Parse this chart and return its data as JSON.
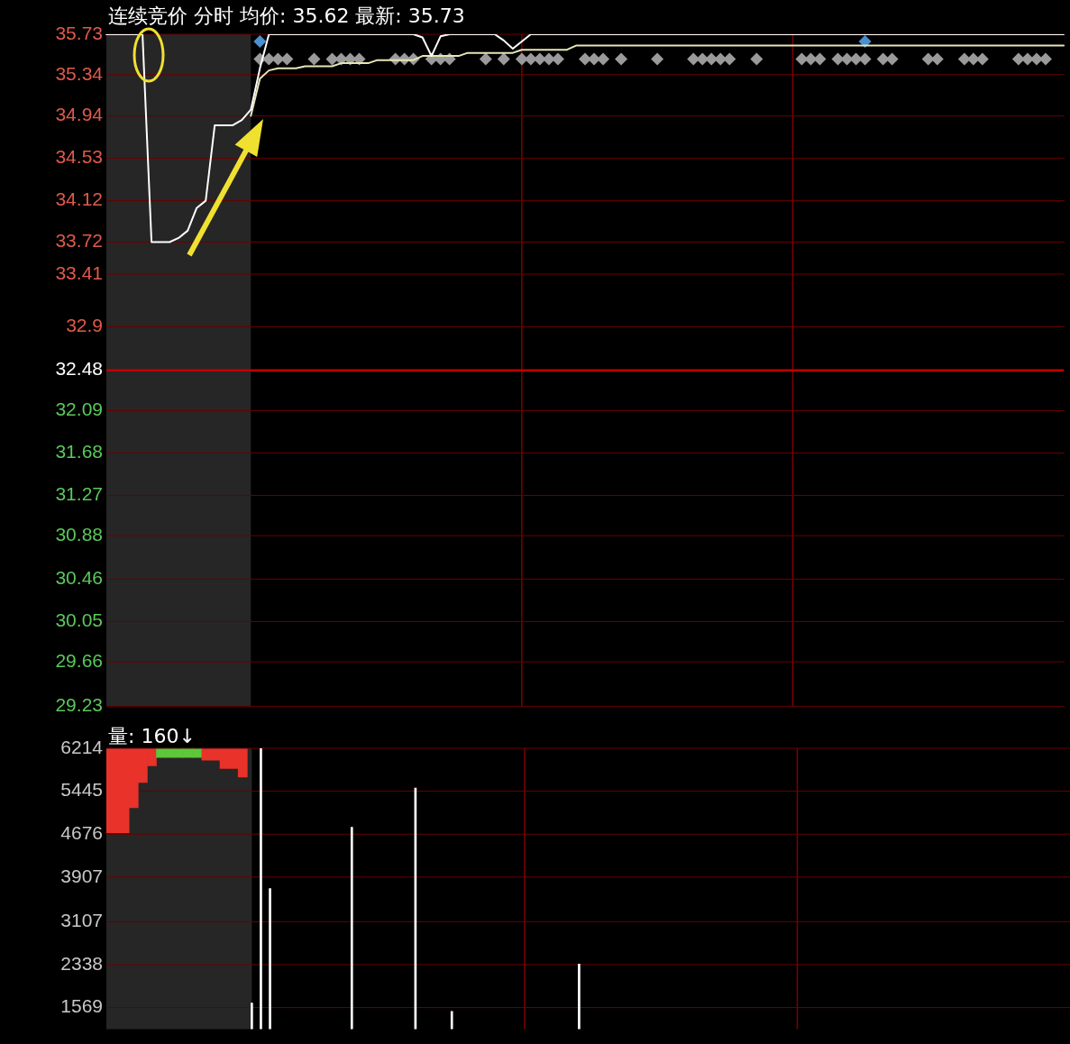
{
  "chart_data": [
    {
      "type": "line",
      "title": "连续竞价 分时 均价: 35.62 最新: 35.73",
      "categories": [
        null,
        null,
        null,
        null,
        null,
        null,
        null,
        null,
        null,
        null,
        null,
        null,
        null,
        null,
        null,
        null,
        null,
        null,
        null,
        null,
        null,
        null,
        null,
        null,
        null,
        null,
        null,
        null,
        null,
        null,
        null,
        null,
        null,
        null,
        null,
        null,
        null,
        null,
        null,
        null,
        null,
        null,
        null,
        null,
        null,
        null,
        null,
        null,
        null,
        null,
        null,
        null,
        null,
        null,
        null,
        null,
        null,
        null,
        null,
        null,
        null,
        null,
        null,
        null,
        null,
        null,
        null,
        null,
        null,
        null,
        null,
        null,
        null,
        null,
        null,
        null,
        null,
        null,
        null,
        null,
        null,
        null,
        null,
        null,
        null,
        null,
        null,
        null,
        null,
        null,
        null,
        null,
        null,
        null,
        null,
        null,
        null,
        null,
        null,
        null,
        null,
        null,
        null,
        null,
        null,
        null,
        null
      ],
      "ylim": [
        29.23,
        35.73
      ],
      "yticks": [
        35.73,
        35.34,
        34.94,
        34.53,
        34.12,
        33.72,
        33.41,
        32.9,
        32.48,
        32.09,
        31.68,
        31.27,
        30.88,
        30.46,
        30.05,
        29.66,
        29.23
      ],
      "grid": "y",
      "tick_labels": "y",
      "ref_lines": [
        {
          "axis": "y",
          "value": 32.48,
          "color": "#c00000"
        }
      ],
      "series": [
        {
          "color": "#ffffff",
          "values": [
            35.73,
            35.73,
            35.73,
            35.73,
            35.73,
            33.72,
            33.72,
            33.72,
            33.76,
            33.83,
            34.05,
            34.12,
            34.85,
            34.85,
            34.85,
            34.9,
            35.0,
            35.4,
            35.73,
            35.73,
            35.73,
            35.73,
            35.73,
            35.73,
            35.73,
            35.73,
            35.73,
            35.73,
            35.73,
            35.73,
            35.73,
            35.73,
            35.73,
            35.73,
            35.73,
            35.7,
            35.52,
            35.71,
            35.73,
            35.73,
            35.73,
            35.73,
            35.73,
            35.73,
            35.67,
            35.59,
            35.66,
            35.73,
            35.73,
            35.73,
            35.73,
            35.73,
            35.73,
            35.73,
            35.73,
            35.73,
            35.73,
            35.73,
            35.73,
            35.73,
            35.73,
            35.73,
            35.73,
            35.73,
            35.73,
            35.73,
            35.73,
            35.73,
            35.73,
            35.73,
            35.73,
            35.73,
            35.73,
            35.73,
            35.73,
            35.73,
            35.73,
            35.73,
            35.73,
            35.73,
            35.73,
            35.73,
            35.73,
            35.73,
            35.73,
            35.73,
            35.73,
            35.73,
            35.73,
            35.73,
            35.73,
            35.73,
            35.73,
            35.73,
            35.73,
            35.73,
            35.73,
            35.73,
            35.73,
            35.73,
            35.73,
            35.73,
            35.73,
            35.73,
            35.73,
            35.73,
            35.73
          ]
        },
        {
          "color": "#e6e6b8",
          "values": [
            null,
            null,
            null,
            null,
            null,
            null,
            null,
            null,
            null,
            null,
            null,
            null,
            null,
            null,
            null,
            null,
            34.94,
            35.3,
            35.38,
            35.4,
            35.4,
            35.4,
            35.42,
            35.42,
            35.42,
            35.42,
            35.45,
            35.45,
            35.45,
            35.45,
            35.48,
            35.48,
            35.48,
            35.48,
            35.48,
            35.52,
            35.52,
            35.52,
            35.52,
            35.52,
            35.55,
            35.55,
            35.55,
            35.55,
            35.55,
            35.55,
            35.58,
            35.58,
            35.58,
            35.58,
            35.58,
            35.58,
            35.62,
            35.62,
            35.62,
            35.62,
            35.62,
            35.62,
            35.62,
            35.62,
            35.62,
            35.62,
            35.62,
            35.62,
            35.62,
            35.62,
            35.62,
            35.62,
            35.62,
            35.62,
            35.62,
            35.62,
            35.62,
            35.62,
            35.62,
            35.62,
            35.62,
            35.62,
            35.62,
            35.62,
            35.62,
            35.62,
            35.62,
            35.62,
            35.62,
            35.62,
            35.62,
            35.62,
            35.62,
            35.62,
            35.62,
            35.62,
            35.62,
            35.62,
            35.62,
            35.62,
            35.62,
            35.62,
            35.62,
            35.62,
            35.62,
            35.62,
            35.62,
            35.62,
            35.62,
            35.62,
            35.62
          ]
        },
        {
          "type": "scatter",
          "marker": "diamond",
          "color": "#9a9a9a",
          "values": [
            null,
            null,
            null,
            null,
            null,
            null,
            null,
            null,
            null,
            null,
            null,
            null,
            null,
            null,
            null,
            null,
            null,
            35.49,
            35.49,
            35.49,
            35.49,
            null,
            null,
            35.49,
            null,
            35.49,
            35.49,
            35.49,
            35.49,
            null,
            null,
            null,
            35.49,
            35.49,
            35.49,
            null,
            35.49,
            35.49,
            35.49,
            null,
            null,
            null,
            35.49,
            null,
            35.49,
            null,
            35.49,
            35.49,
            35.49,
            35.49,
            35.49,
            null,
            null,
            35.49,
            35.49,
            35.49,
            null,
            35.49,
            null,
            null,
            null,
            35.49,
            null,
            null,
            null,
            35.49,
            35.49,
            35.49,
            35.49,
            35.49,
            null,
            null,
            35.49,
            null,
            null,
            null,
            null,
            35.49,
            35.49,
            35.49,
            null,
            35.49,
            35.49,
            35.49,
            35.49,
            null,
            35.49,
            35.49,
            null,
            null,
            null,
            35.49,
            35.49,
            null,
            null,
            35.49,
            35.49,
            35.49,
            null,
            null,
            null,
            35.49,
            35.49,
            35.49,
            35.49,
            null,
            null
          ]
        },
        {
          "type": "scatter",
          "marker": "diamond",
          "color": "#4a8fd0",
          "values": [
            null,
            null,
            null,
            null,
            null,
            null,
            null,
            null,
            null,
            null,
            null,
            null,
            null,
            null,
            null,
            null,
            null,
            35.66,
            null,
            null,
            null,
            null,
            null,
            null,
            null,
            null,
            null,
            null,
            null,
            null,
            null,
            null,
            null,
            null,
            null,
            null,
            null,
            null,
            null,
            null,
            null,
            null,
            null,
            null,
            null,
            null,
            null,
            null,
            null,
            null,
            null,
            null,
            null,
            null,
            null,
            null,
            null,
            null,
            null,
            null,
            null,
            null,
            null,
            null,
            null,
            null,
            null,
            null,
            null,
            null,
            null,
            null,
            null,
            null,
            null,
            null,
            null,
            null,
            null,
            null,
            null,
            null,
            null,
            null,
            35.66,
            null,
            null,
            null,
            null,
            null,
            null,
            null,
            null,
            null,
            null,
            null,
            null,
            null,
            null,
            null,
            null,
            null,
            null,
            null,
            null,
            null,
            null
          ]
        }
      ]
    },
    {
      "type": "bar",
      "title": "量: 160↓",
      "categories": [
        null,
        null,
        null,
        null,
        null,
        null,
        null,
        null,
        null,
        null,
        null,
        null,
        null,
        null,
        null,
        null,
        null,
        null,
        null,
        null,
        null,
        null,
        null,
        null,
        null,
        null,
        null,
        null,
        null,
        null,
        null,
        null,
        null,
        null,
        null,
        null,
        null,
        null,
        null,
        null,
        null,
        null,
        null,
        null,
        null,
        null,
        null,
        null,
        null,
        null,
        null,
        null,
        null,
        null,
        null,
        null,
        null,
        null,
        null,
        null,
        null,
        null,
        null,
        null,
        null,
        null,
        null,
        null,
        null,
        null,
        null,
        null,
        null,
        null,
        null,
        null,
        null,
        null,
        null,
        null,
        null,
        null,
        null,
        null,
        null,
        null,
        null,
        null,
        null,
        null,
        null,
        null,
        null,
        null,
        null,
        null,
        null,
        null,
        null,
        null,
        null,
        null,
        null,
        null,
        null,
        null,
        null
      ],
      "ylim": [
        1184,
        6214
      ],
      "yticks": [
        6214,
        5445,
        4676,
        3907,
        3107,
        2338,
        1569
      ],
      "grid": "y",
      "tick_labels": "y",
      "series": [
        {
          "color": "#ffffff",
          "values": [
            null,
            null,
            null,
            null,
            null,
            null,
            null,
            null,
            null,
            null,
            null,
            null,
            null,
            null,
            null,
            null,
            1650,
            6214,
            3700,
            null,
            null,
            null,
            null,
            null,
            null,
            null,
            null,
            4800,
            null,
            null,
            null,
            null,
            null,
            null,
            5500,
            null,
            null,
            null,
            1500,
            null,
            null,
            null,
            null,
            null,
            null,
            null,
            null,
            null,
            null,
            null,
            null,
            null,
            2350,
            null,
            null,
            null,
            null,
            null,
            null,
            null,
            null,
            null,
            null,
            null,
            null,
            null,
            null,
            null,
            null,
            null,
            null,
            null,
            null,
            null,
            null,
            null,
            null,
            null,
            null,
            null,
            null,
            null,
            null,
            null,
            null,
            null,
            null,
            null,
            null,
            null,
            null,
            null,
            null,
            null,
            null,
            null,
            null,
            null,
            null,
            null,
            null,
            null,
            null,
            null,
            null,
            null,
            null
          ]
        },
        {
          "color": "#e8322a",
          "colors": [
            "#e8322a",
            "#e8322a",
            "#e8322a",
            "#e8322a",
            "#e8322a",
            "#e8322a",
            "#5cc83a",
            "#5cc83a",
            "#5cc83a",
            "#5cc83a",
            "#5cc83a",
            "#e8322a",
            "#e8322a",
            "#e8322a",
            "#e8322a",
            "#e8322a",
            null,
            null,
            null,
            null,
            null,
            null,
            null,
            null,
            null,
            null,
            null,
            null,
            null,
            null,
            null,
            null,
            null,
            null,
            null,
            null,
            null,
            null,
            null,
            null,
            null,
            null,
            null,
            null,
            null,
            null,
            null,
            null,
            null,
            null,
            null,
            null,
            null,
            null,
            null,
            null,
            null,
            null,
            null,
            null,
            null,
            null,
            null,
            null,
            null,
            null,
            null,
            null,
            null,
            null,
            null,
            null,
            null,
            null,
            null,
            null,
            null,
            null,
            null,
            null,
            null,
            null,
            null,
            null,
            null,
            null,
            null,
            null,
            null,
            null,
            null,
            null,
            null,
            null,
            null,
            null,
            null,
            null,
            null,
            null,
            null,
            null,
            null,
            null,
            null,
            null,
            null
          ],
          "base": [
            4700,
            4700,
            4700,
            5150,
            5600,
            5900,
            6050,
            6050,
            6050,
            6050,
            6050,
            6000,
            6000,
            5850,
            5850,
            5700,
            null,
            null,
            null,
            null,
            null,
            null,
            null,
            null,
            null,
            null,
            null,
            null,
            null,
            null,
            null,
            null,
            null,
            null,
            null,
            null,
            null,
            null,
            null,
            null,
            null,
            null,
            null,
            null,
            null,
            null,
            null,
            null,
            null,
            null,
            null,
            null,
            null,
            null,
            null,
            null,
            null,
            null,
            null,
            null,
            null,
            null,
            null,
            null,
            null,
            null,
            null,
            null,
            null,
            null,
            null,
            null,
            null,
            null,
            null,
            null,
            null,
            null,
            null,
            null,
            null,
            null,
            null,
            null,
            null,
            null,
            null,
            null,
            null,
            null,
            null,
            null,
            null,
            null,
            null,
            null,
            null,
            null,
            null,
            null,
            null,
            null,
            null,
            null,
            null,
            null,
            null
          ],
          "values": [
            1500,
            1500,
            1500,
            1050,
            600,
            300,
            150,
            150,
            150,
            150,
            150,
            200,
            200,
            350,
            350,
            500,
            null,
            null,
            null,
            null,
            null,
            null,
            null,
            null,
            null,
            null,
            null,
            null,
            null,
            null,
            null,
            null,
            null,
            null,
            null,
            null,
            null,
            null,
            null,
            null,
            null,
            null,
            null,
            null,
            null,
            null,
            null,
            null,
            null,
            null,
            null,
            null,
            null,
            null,
            null,
            null,
            null,
            null,
            null,
            null,
            null,
            null,
            null,
            null,
            null,
            null,
            null,
            null,
            null,
            null,
            null,
            null,
            null,
            null,
            null,
            null,
            null,
            null,
            null,
            null,
            null,
            null,
            null,
            null,
            null,
            null,
            null,
            null,
            null,
            null,
            null,
            null,
            null,
            null,
            null,
            null,
            null,
            null,
            null,
            null,
            null,
            null,
            null,
            null,
            null,
            null,
            null
          ]
        }
      ]
    }
  ]
}
